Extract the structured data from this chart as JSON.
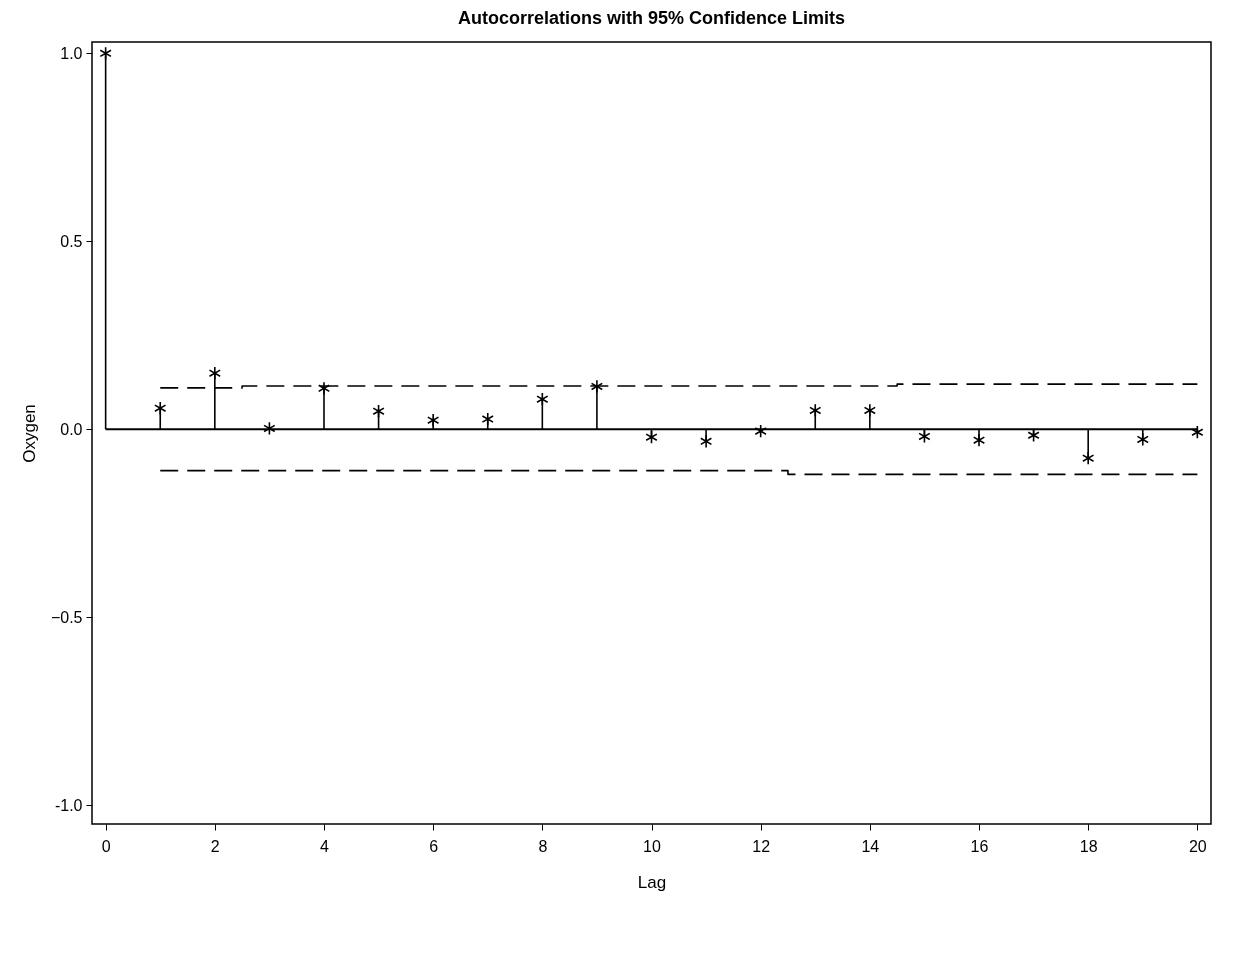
{
  "chart_data": {
    "type": "lollipop",
    "title": "Autocorrelations with 95% Confidence Limits",
    "xlabel": "Lag",
    "ylabel": "Oxygen",
    "xlim": [
      -0.25,
      20.25
    ],
    "xticks": [
      0,
      2,
      4,
      6,
      8,
      10,
      12,
      14,
      16,
      18,
      20
    ],
    "ylim": [
      -1.05,
      1.03
    ],
    "yticks": [
      {
        "value": -1,
        "label": "-1.0"
      },
      -0.5,
      {
        "value": 0,
        "label": "0.0"
      },
      0.5,
      {
        "value": 1,
        "label": "1.0"
      }
    ],
    "marker": "cross",
    "series": [
      {
        "color": "#000000",
        "x": [
          0,
          1,
          2,
          3,
          4,
          5,
          6,
          7,
          8,
          9,
          10,
          11,
          12,
          13,
          14,
          15,
          16,
          17,
          18,
          19,
          20
        ],
        "values": [
          1.0,
          0.056,
          0.149,
          0.002,
          0.109,
          0.048,
          0.024,
          0.027,
          0.08,
          0.114,
          -0.021,
          -0.032,
          -0.005,
          0.05,
          0.05,
          -0.019,
          -0.029,
          -0.016,
          -0.077,
          -0.027,
          -0.008
        ]
      },
      {
        "type": "step",
        "color": "#000000",
        "line_style": "dashed",
        "marker": "none",
        "x": [
          1,
          2,
          3,
          4,
          5,
          6,
          7,
          8,
          9,
          10,
          11,
          12,
          13,
          14,
          15,
          16,
          17,
          18,
          19,
          20
        ],
        "values": [
          0.11,
          0.11,
          0.115,
          0.115,
          0.115,
          0.115,
          0.115,
          0.115,
          0.115,
          0.115,
          0.115,
          0.115,
          0.115,
          0.115,
          0.12,
          0.12,
          0.12,
          0.12,
          0.12,
          0.12
        ]
      },
      {
        "type": "step",
        "color": "#000000",
        "line_style": "dashed",
        "marker": "none",
        "x": [
          1,
          2,
          3,
          4,
          5,
          6,
          7,
          8,
          9,
          10,
          11,
          12,
          13,
          14,
          15,
          16,
          17,
          18,
          19,
          20
        ],
        "values": [
          -0.11,
          -0.11,
          -0.11,
          -0.11,
          -0.11,
          -0.11,
          -0.11,
          -0.11,
          -0.11,
          -0.11,
          -0.11,
          -0.11,
          -0.12,
          -0.12,
          -0.12,
          -0.12,
          -0.12,
          -0.12,
          -0.12,
          -0.12
        ]
      }
    ]
  }
}
